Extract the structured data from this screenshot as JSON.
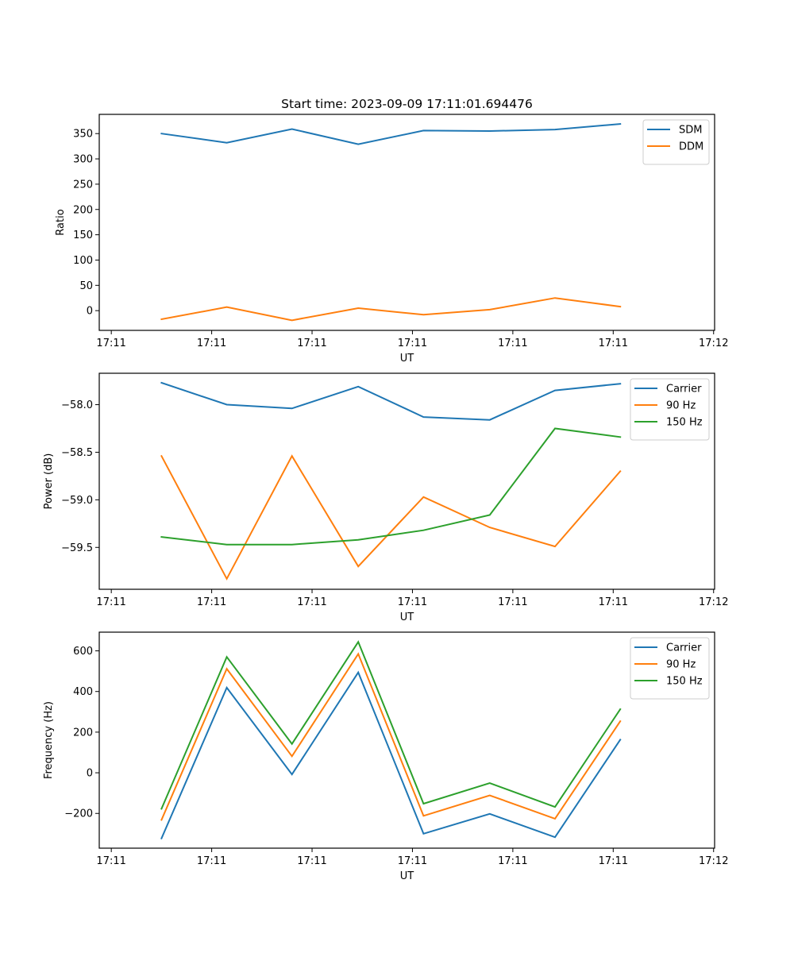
{
  "figure_title": "Start time: 2023-09-09 17:11:01.694476",
  "chart_data": [
    {
      "type": "line",
      "title": "Start time: 2023-09-09 17:11:01.694476",
      "xlabel": "UT",
      "ylabel": "Ratio",
      "x_unit": "seconds after 17:11:00",
      "x": [
        5.0,
        11.5,
        18.0,
        24.6,
        31.1,
        37.7,
        44.2,
        50.7
      ],
      "xlim": [
        -1.2,
        60.1
      ],
      "xticks": [
        0,
        10,
        20,
        30,
        40,
        50,
        60
      ],
      "xtick_labels": [
        "17:11",
        "17:11",
        "17:11",
        "17:11",
        "17:11",
        "17:11",
        "17:12"
      ],
      "ylim": [
        -39,
        388
      ],
      "yticks": [
        0,
        50,
        100,
        150,
        200,
        250,
        300,
        350
      ],
      "ytick_labels": [
        "0",
        "50",
        "100",
        "150",
        "200",
        "250",
        "300",
        "350"
      ],
      "legend_position": "top-right",
      "grid": false,
      "series": [
        {
          "name": "SDM",
          "color": "#1f77b4",
          "values": [
            350,
            332,
            359,
            329,
            356,
            355,
            358,
            369
          ]
        },
        {
          "name": "DDM",
          "color": "#ff7f0e",
          "values": [
            -17,
            7,
            -19,
            5,
            -8,
            2,
            25,
            8
          ]
        }
      ]
    },
    {
      "type": "line",
      "title": "",
      "xlabel": "UT",
      "ylabel": "Power (dB)",
      "x_unit": "seconds after 17:11:00",
      "x": [
        5.0,
        11.5,
        18.0,
        24.6,
        31.1,
        37.7,
        44.2,
        50.7
      ],
      "xlim": [
        -1.2,
        60.1
      ],
      "xticks": [
        0,
        10,
        20,
        30,
        40,
        50,
        60
      ],
      "xtick_labels": [
        "17:11",
        "17:11",
        "17:11",
        "17:11",
        "17:11",
        "17:11",
        "17:12"
      ],
      "ylim": [
        -59.94,
        -57.67
      ],
      "yticks": [
        -59.5,
        -59.0,
        -58.5,
        -58.0
      ],
      "ytick_labels": [
        "−59.5",
        "−59.0",
        "−58.5",
        "−58.0"
      ],
      "legend_position": "top-right",
      "grid": false,
      "series": [
        {
          "name": "Carrier",
          "color": "#1f77b4",
          "values": [
            -57.77,
            -58.0,
            -58.04,
            -57.81,
            -58.13,
            -58.16,
            -57.85,
            -57.78
          ]
        },
        {
          "name": "90 Hz",
          "color": "#ff7f0e",
          "values": [
            -58.54,
            -59.83,
            -58.54,
            -59.7,
            -58.97,
            -59.29,
            -59.49,
            -58.7
          ]
        },
        {
          "name": "150 Hz",
          "color": "#2ca02c",
          "values": [
            -59.39,
            -59.47,
            -59.47,
            -59.42,
            -59.32,
            -59.16,
            -58.25,
            -58.34
          ]
        }
      ]
    },
    {
      "type": "line",
      "title": "",
      "xlabel": "UT",
      "ylabel": "Frequency (Hz)",
      "x_unit": "seconds after 17:11:00",
      "x": [
        5.0,
        11.5,
        18.0,
        24.6,
        31.1,
        37.7,
        44.2,
        50.7
      ],
      "xlim": [
        -1.2,
        60.1
      ],
      "xticks": [
        0,
        10,
        20,
        30,
        40,
        50,
        60
      ],
      "xtick_labels": [
        "17:11",
        "17:11",
        "17:11",
        "17:11",
        "17:11",
        "17:11",
        "17:12"
      ],
      "ylim": [
        -371,
        692
      ],
      "yticks": [
        -200,
        0,
        200,
        400,
        600
      ],
      "ytick_labels": [
        "−200",
        "0",
        "200",
        "400",
        "600"
      ],
      "legend_position": "top-right",
      "grid": false,
      "series": [
        {
          "name": "Carrier",
          "color": "#1f77b4",
          "values": [
            -323,
            419,
            -8,
            494,
            -300,
            -202,
            -317,
            163
          ]
        },
        {
          "name": "90 Hz",
          "color": "#ff7f0e",
          "values": [
            -232,
            512,
            81,
            585,
            -212,
            -111,
            -226,
            254
          ]
        },
        {
          "name": "150 Hz",
          "color": "#2ca02c",
          "values": [
            -177,
            570,
            142,
            644,
            -152,
            -51,
            -168,
            313
          ]
        }
      ]
    }
  ]
}
